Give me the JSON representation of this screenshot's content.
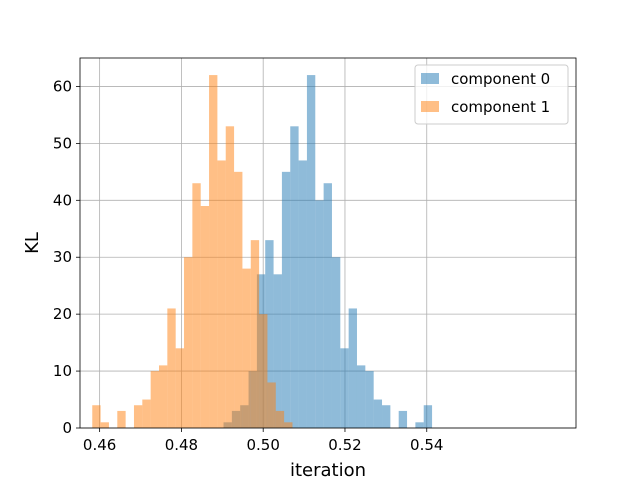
{
  "chart_data": {
    "type": "bar",
    "subtype": "overlaid-histogram",
    "xlabel": "iteration",
    "ylabel": "KL",
    "xlim": [
      0.4552,
      0.5765
    ],
    "ylim": [
      0,
      65
    ],
    "xticks": [
      0.46,
      0.48,
      0.5,
      0.52,
      0.54
    ],
    "xtick_labels": [
      "0.46",
      "0.48",
      "0.50",
      "0.52",
      "0.54"
    ],
    "yticks": [
      0,
      10,
      20,
      30,
      40,
      50,
      60
    ],
    "ytick_labels": [
      "0",
      "10",
      "20",
      "30",
      "40",
      "50",
      "60"
    ],
    "grid": true,
    "legend_position": "top-right",
    "series": [
      {
        "name": "component 0",
        "color": "#1f77b4",
        "alpha": 0.5,
        "bin_start": 0.4903,
        "bin_width": 0.00204,
        "counts": [
          1,
          3,
          4,
          10,
          27,
          33,
          27,
          45,
          53,
          47,
          62,
          40,
          43,
          30,
          14,
          21,
          11,
          10,
          5,
          4,
          0,
          3,
          0,
          1,
          4
        ]
      },
      {
        "name": "component 1",
        "color": "#ff7f0e",
        "alpha": 0.5,
        "bin_start": 0.4582,
        "bin_width": 0.00204,
        "counts": [
          4,
          1,
          0,
          3,
          0,
          4,
          5,
          10,
          11,
          21,
          14,
          30,
          43,
          39,
          62,
          47,
          53,
          45,
          28,
          33,
          20,
          8,
          3,
          1
        ]
      }
    ]
  }
}
